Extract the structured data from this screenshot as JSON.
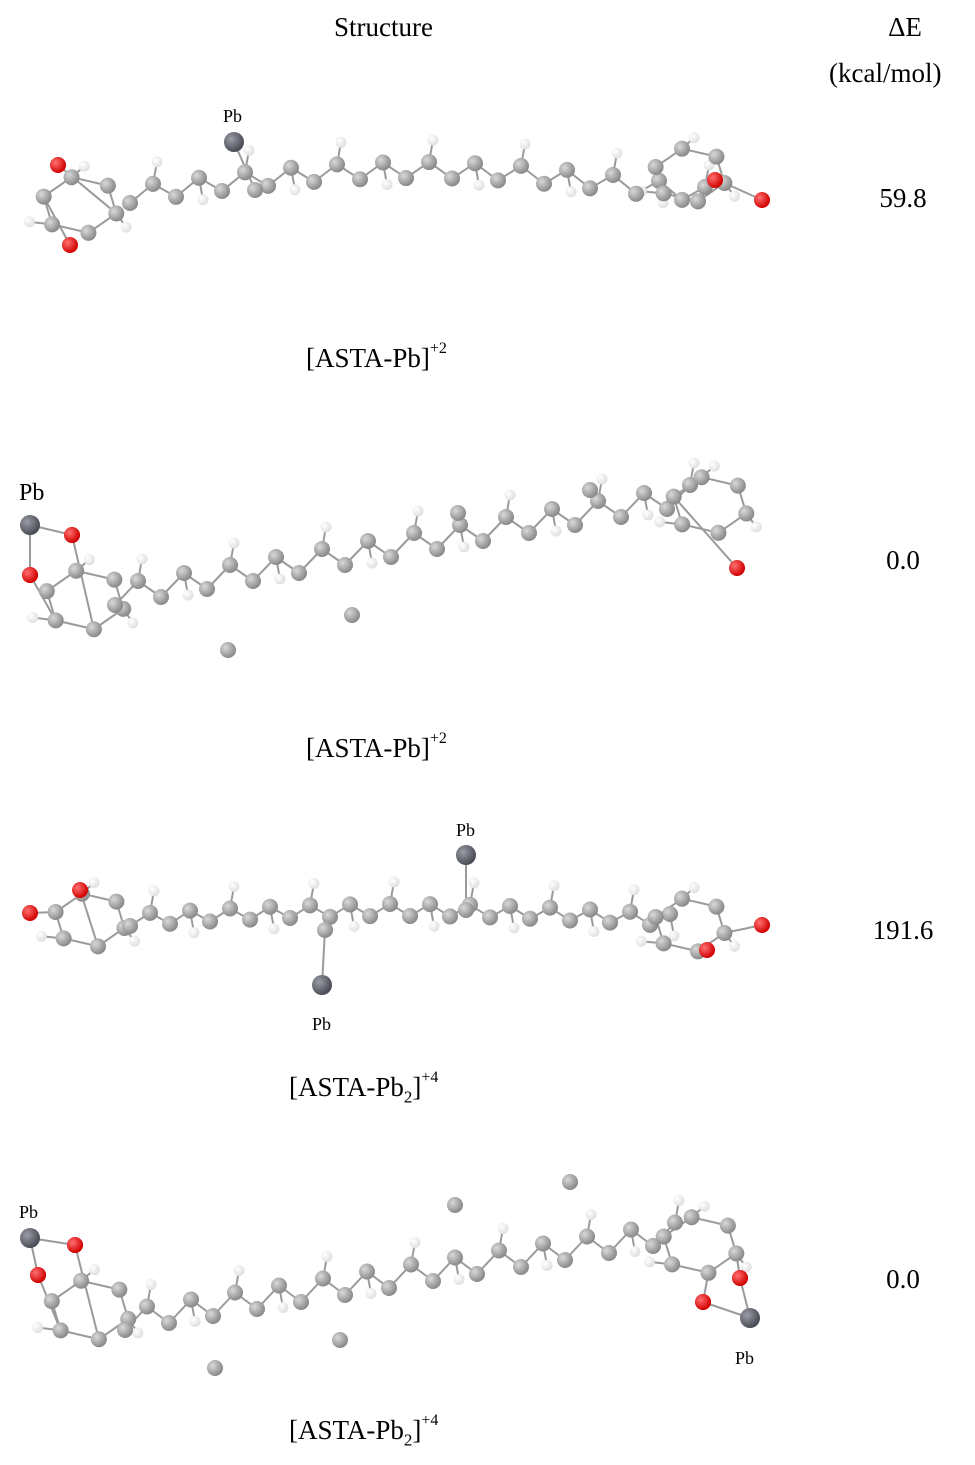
{
  "header": {
    "structure": "Structure",
    "delta_e": "ΔE",
    "unit": "(kcal/mol)"
  },
  "colors": {
    "carbon": "#8a8a8a",
    "hydrogen": "#e0e0e0",
    "oxygen": "#d10000",
    "lead": "#4a4c55",
    "bond": "#9a9a9a"
  },
  "rows": [
    {
      "energy": "59.8",
      "label_main": "[ASTA-Pb]",
      "label_sub": "",
      "label_charge": "+2",
      "pb_labels": [
        "Pb"
      ]
    },
    {
      "energy": "0.0",
      "label_main": "[ASTA-Pb]",
      "label_sub": "",
      "label_charge": "+2",
      "pb_labels": [
        "Pb"
      ]
    },
    {
      "energy": "191.6",
      "label_main": "[ASTA-Pb",
      "label_sub": "2",
      "label_charge": "+4",
      "pb_labels": [
        "Pb",
        "Pb"
      ]
    },
    {
      "energy": "0.0",
      "label_main": "[ASTA-Pb",
      "label_sub": "2",
      "label_charge": "+4",
      "pb_labels": [
        "Pb",
        "Pb"
      ]
    }
  ]
}
